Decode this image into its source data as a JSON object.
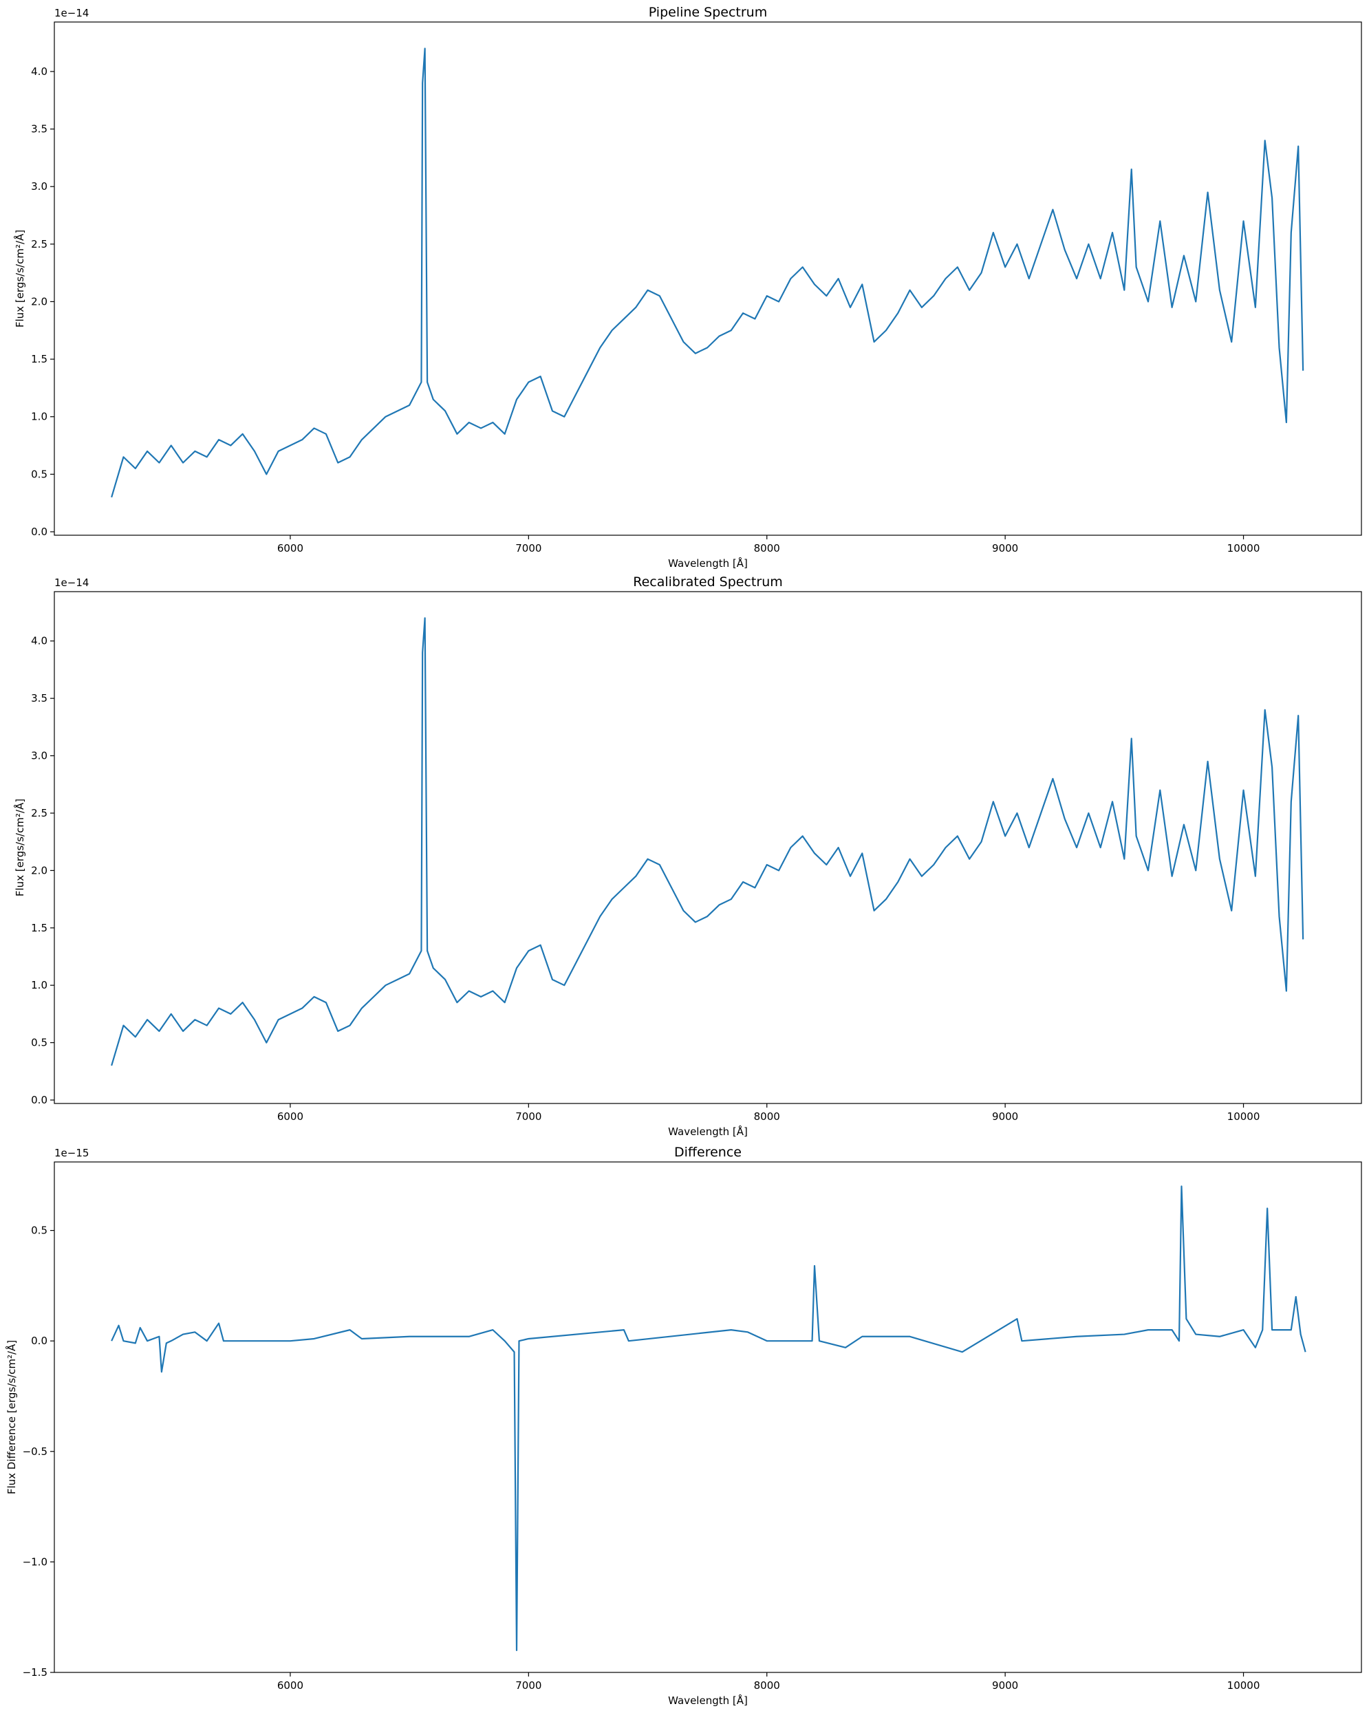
{
  "chart_data": [
    {
      "type": "line",
      "title": "Pipeline Spectrum",
      "xlabel": "Wavelength [Å]",
      "ylabel": "Flux [ergs/s/cm²/Å]",
      "offset_label": "1e−14",
      "x": [
        5250,
        5300,
        5350,
        5400,
        5450,
        5500,
        5550,
        5600,
        5650,
        5700,
        5750,
        5800,
        5850,
        5900,
        5950,
        6000,
        6050,
        6100,
        6150,
        6200,
        6250,
        6300,
        6350,
        6400,
        6450,
        6500,
        6550,
        6555,
        6565,
        6575,
        6600,
        6650,
        6700,
        6750,
        6800,
        6850,
        6900,
        6950,
        7000,
        7050,
        7100,
        7150,
        7200,
        7250,
        7300,
        7350,
        7400,
        7450,
        7500,
        7550,
        7600,
        7650,
        7700,
        7750,
        7800,
        7850,
        7900,
        7950,
        8000,
        8050,
        8100,
        8150,
        8200,
        8250,
        8300,
        8350,
        8400,
        8450,
        8500,
        8550,
        8600,
        8650,
        8700,
        8750,
        8800,
        8850,
        8900,
        8950,
        9000,
        9050,
        9100,
        9150,
        9200,
        9250,
        9300,
        9350,
        9400,
        9450,
        9500,
        9530,
        9550,
        9600,
        9650,
        9700,
        9750,
        9800,
        9850,
        9900,
        9950,
        10000,
        10050,
        10090,
        10120,
        10150,
        10180,
        10200,
        10230,
        10250
      ],
      "series": [
        {
          "name": "Pipeline",
          "color": "#1f77b4",
          "values": [
            0.3,
            0.65,
            0.55,
            0.7,
            0.6,
            0.75,
            0.6,
            0.7,
            0.65,
            0.8,
            0.75,
            0.85,
            0.7,
            0.5,
            0.7,
            0.75,
            0.8,
            0.9,
            0.85,
            0.6,
            0.65,
            0.8,
            0.9,
            1.0,
            1.05,
            1.1,
            1.3,
            3.9,
            4.2,
            1.3,
            1.15,
            1.05,
            0.85,
            0.95,
            0.9,
            0.95,
            0.85,
            1.15,
            1.3,
            1.35,
            1.05,
            1.0,
            1.2,
            1.4,
            1.6,
            1.75,
            1.85,
            1.95,
            2.1,
            2.05,
            1.85,
            1.65,
            1.55,
            1.6,
            1.7,
            1.75,
            1.9,
            1.85,
            2.05,
            2.0,
            2.2,
            2.3,
            2.15,
            2.05,
            2.2,
            1.95,
            2.15,
            1.65,
            1.75,
            1.9,
            2.1,
            1.95,
            2.05,
            2.2,
            2.3,
            2.1,
            2.25,
            2.6,
            2.3,
            2.5,
            2.2,
            2.5,
            2.8,
            2.45,
            2.2,
            2.5,
            2.2,
            2.6,
            2.1,
            3.15,
            2.3,
            2.0,
            2.7,
            1.95,
            2.4,
            2.0,
            2.95,
            2.1,
            1.65,
            2.7,
            1.95,
            3.4,
            2.9,
            1.6,
            0.95,
            2.6,
            3.35,
            1.4
          ]
        }
      ],
      "xlim": [
        5010,
        10495
      ],
      "xticks": [
        6000,
        7000,
        8000,
        9000,
        10000
      ],
      "ylim": [
        -0.03,
        4.43
      ],
      "yticks": [
        {
          "value": 0,
          "label": "0.0"
        },
        0.5,
        {
          "value": 1,
          "label": "1.0"
        },
        1.5,
        {
          "value": 2,
          "label": "2.0"
        },
        2.5,
        {
          "value": 3,
          "label": "3.0"
        },
        3.5,
        {
          "value": 4,
          "label": "4.0"
        }
      ]
    },
    {
      "type": "line",
      "title": "Recalibrated Spectrum",
      "xlabel": "Wavelength [Å]",
      "ylabel": "Flux [ergs/s/cm²/Å]",
      "offset_label": "1e−14",
      "x": [
        5250,
        5300,
        5350,
        5400,
        5450,
        5500,
        5550,
        5600,
        5650,
        5700,
        5750,
        5800,
        5850,
        5900,
        5950,
        6000,
        6050,
        6100,
        6150,
        6200,
        6250,
        6300,
        6350,
        6400,
        6450,
        6500,
        6550,
        6555,
        6565,
        6575,
        6600,
        6650,
        6700,
        6750,
        6800,
        6850,
        6900,
        6950,
        7000,
        7050,
        7100,
        7150,
        7200,
        7250,
        7300,
        7350,
        7400,
        7450,
        7500,
        7550,
        7600,
        7650,
        7700,
        7750,
        7800,
        7850,
        7900,
        7950,
        8000,
        8050,
        8100,
        8150,
        8200,
        8250,
        8300,
        8350,
        8400,
        8450,
        8500,
        8550,
        8600,
        8650,
        8700,
        8750,
        8800,
        8850,
        8900,
        8950,
        9000,
        9050,
        9100,
        9150,
        9200,
        9250,
        9300,
        9350,
        9400,
        9450,
        9500,
        9530,
        9550,
        9600,
        9650,
        9700,
        9750,
        9800,
        9850,
        9900,
        9950,
        10000,
        10050,
        10090,
        10120,
        10150,
        10180,
        10200,
        10230,
        10250
      ],
      "series": [
        {
          "name": "Recalibrated",
          "color": "#1f77b4",
          "values": [
            0.3,
            0.65,
            0.55,
            0.7,
            0.6,
            0.75,
            0.6,
            0.7,
            0.65,
            0.8,
            0.75,
            0.85,
            0.7,
            0.5,
            0.7,
            0.75,
            0.8,
            0.9,
            0.85,
            0.6,
            0.65,
            0.8,
            0.9,
            1.0,
            1.05,
            1.1,
            1.3,
            3.9,
            4.2,
            1.3,
            1.15,
            1.05,
            0.85,
            0.95,
            0.9,
            0.95,
            0.85,
            1.15,
            1.3,
            1.35,
            1.05,
            1.0,
            1.2,
            1.4,
            1.6,
            1.75,
            1.85,
            1.95,
            2.1,
            2.05,
            1.85,
            1.65,
            1.55,
            1.6,
            1.7,
            1.75,
            1.9,
            1.85,
            2.05,
            2.0,
            2.2,
            2.3,
            2.15,
            2.05,
            2.2,
            1.95,
            2.15,
            1.65,
            1.75,
            1.9,
            2.1,
            1.95,
            2.05,
            2.2,
            2.3,
            2.1,
            2.25,
            2.6,
            2.3,
            2.5,
            2.2,
            2.5,
            2.8,
            2.45,
            2.2,
            2.5,
            2.2,
            2.6,
            2.1,
            3.15,
            2.3,
            2.0,
            2.7,
            1.95,
            2.4,
            2.0,
            2.95,
            2.1,
            1.65,
            2.7,
            1.95,
            3.4,
            2.9,
            1.6,
            0.95,
            2.6,
            3.35,
            1.4
          ]
        }
      ],
      "xlim": [
        5010,
        10495
      ],
      "xticks": [
        6000,
        7000,
        8000,
        9000,
        10000
      ],
      "ylim": [
        -0.03,
        4.43
      ],
      "yticks": [
        {
          "value": 0,
          "label": "0.0"
        },
        0.5,
        {
          "value": 1,
          "label": "1.0"
        },
        1.5,
        {
          "value": 2,
          "label": "2.0"
        },
        2.5,
        {
          "value": 3,
          "label": "3.0"
        },
        3.5,
        {
          "value": 4,
          "label": "4.0"
        }
      ]
    },
    {
      "type": "line",
      "title": "Difference",
      "xlabel": "Wavelength [Å]",
      "ylabel": "Flux Difference [ergs/s/cm²/Å]",
      "offset_label": "1e−15",
      "x": [
        5250,
        5280,
        5300,
        5350,
        5370,
        5400,
        5450,
        5460,
        5480,
        5500,
        5550,
        5600,
        5650,
        5700,
        5720,
        5800,
        6000,
        6100,
        6250,
        6300,
        6500,
        6750,
        6850,
        6900,
        6940,
        6950,
        6960,
        7000,
        7400,
        7420,
        7850,
        7920,
        8000,
        8190,
        8200,
        8220,
        8330,
        8400,
        8600,
        8820,
        9050,
        9070,
        9300,
        9500,
        9600,
        9700,
        9730,
        9740,
        9760,
        9800,
        9900,
        10000,
        10050,
        10080,
        10100,
        10120,
        10200,
        10220,
        10240,
        10260
      ],
      "series": [
        {
          "name": "Difference",
          "color": "#1f77b4",
          "values": [
            0.0,
            0.07,
            0.0,
            -0.01,
            0.06,
            0,
            0.02,
            -0.14,
            -0.01,
            0,
            0.03,
            0.04,
            0,
            0.08,
            0,
            0,
            0,
            0.01,
            0.05,
            0.01,
            0.02,
            0.02,
            0.05,
            0,
            -0.05,
            -1.4,
            0,
            0.01,
            0.05,
            0,
            0.05,
            0.04,
            0,
            0.0,
            0.34,
            0,
            -0.03,
            0.02,
            0.02,
            -0.05,
            0.1,
            0,
            0.02,
            0.03,
            0.05,
            0.05,
            0.0,
            0.7,
            0.1,
            0.03,
            0.02,
            0.05,
            -0.03,
            0.05,
            0.6,
            0.05,
            0.05,
            0.2,
            0.03,
            -0.05
          ]
        }
      ],
      "xlim": [
        5010,
        10495
      ],
      "xticks": [
        6000,
        7000,
        8000,
        9000,
        10000
      ],
      "ylim": [
        -1.5,
        0.81
      ],
      "yticks": [
        {
          "value": -1.5,
          "label": "−1.5"
        },
        {
          "value": -1,
          "label": "−1.0"
        },
        {
          "value": -0.5,
          "label": "−0.5"
        },
        {
          "value": 0,
          "label": "0.0"
        },
        0.5
      ]
    }
  ]
}
